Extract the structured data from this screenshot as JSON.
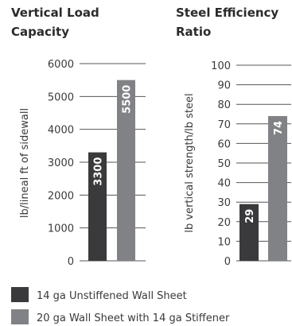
{
  "chart_data": [
    {
      "type": "bar",
      "title_lines": [
        "Vertical Load",
        "Capacity"
      ],
      "ylabel": "lb/lineal ft of sidewall",
      "ylim": [
        0,
        6000
      ],
      "yticks": [
        0,
        1000,
        2000,
        3000,
        4000,
        5000,
        6000
      ],
      "series": [
        {
          "name": "14 ga Unstiffened Wall Sheet",
          "values": [
            3300
          ]
        },
        {
          "name": "20 ga Wall Sheet with 14 ga Stiffener",
          "values": [
            5500
          ]
        }
      ],
      "data_labels": [
        "3300",
        "5500"
      ]
    },
    {
      "type": "bar",
      "title_lines": [
        "Steel Efficiency",
        "Ratio"
      ],
      "ylabel": "lb vertical strength/lb steel",
      "ylim": [
        0,
        100
      ],
      "yticks": [
        0,
        10,
        20,
        30,
        40,
        50,
        60,
        70,
        80,
        90,
        100
      ],
      "series": [
        {
          "name": "14 ga Unstiffened Wall Sheet",
          "values": [
            29
          ]
        },
        {
          "name": "20 ga Wall Sheet with 14 ga Stiffener",
          "values": [
            74
          ]
        }
      ],
      "data_labels": [
        "29",
        "74"
      ]
    }
  ],
  "legend": [
    {
      "label": "14 ga Unstiffened Wall Sheet",
      "color": "#3a3a3c"
    },
    {
      "label": "20 ga Wall Sheet with 14 ga Stiffener",
      "color": "#808285"
    }
  ],
  "colors": {
    "series1": "#3a3a3c",
    "series2": "#808285",
    "axis": "#555555"
  }
}
